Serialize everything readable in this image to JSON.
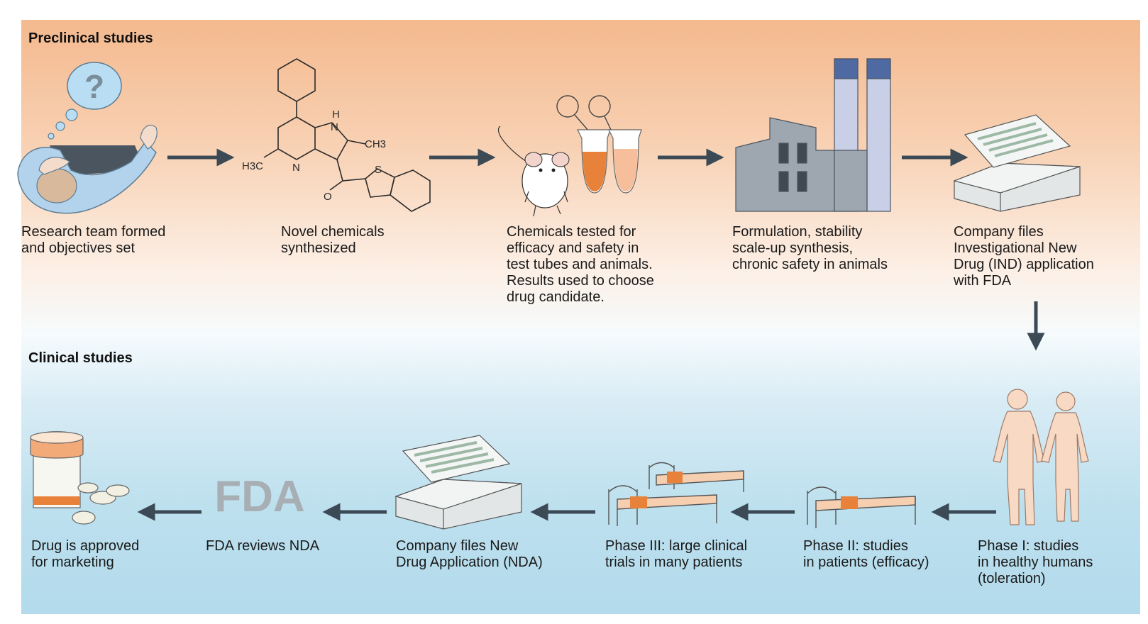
{
  "sections": {
    "preclinical": "Preclinical studies",
    "clinical": "Clinical studies"
  },
  "steps": {
    "research_team": "Research team formed\nand objectives set",
    "novel_chemicals": "Novel chemicals\nsynthesized",
    "chemicals_tested": "Chemicals tested for\nefficacy and safety in\ntest tubes and animals.\nResults used to choose\ndrug candidate.",
    "formulation": "Formulation, stability\nscale-up synthesis,\nchronic safety in animals",
    "company_ind": "Company files\nInvestigational New\nDrug (IND) application\nwith FDA",
    "phase1": "Phase I: studies\nin healthy humans\n(toleration)",
    "phase2": "Phase II: studies\nin patients (efficacy)",
    "phase3": "Phase III: large clinical\ntrials in many patients",
    "company_nda": "Company files New\nDrug Application (NDA)",
    "fda_reviews": "FDA reviews NDA",
    "approved": "Drug is approved\nfor marketing"
  },
  "labels": {
    "question_mark": "?",
    "fda_logo": "FDA",
    "chem_h": "H",
    "chem_n_ring": "N",
    "chem_n_pyridine": "N",
    "chem_ch3": "CH3",
    "chem_h3c": "H3C",
    "chem_s": "S",
    "chem_o": "O"
  },
  "colors": {
    "arrow": "#3b4a55",
    "orange_accent": "#e8823a",
    "factory": "#9ea7b0",
    "chimney": "#c9cfe6",
    "chimney_top": "#4f6aa3",
    "skin": "#f7d9c4"
  }
}
